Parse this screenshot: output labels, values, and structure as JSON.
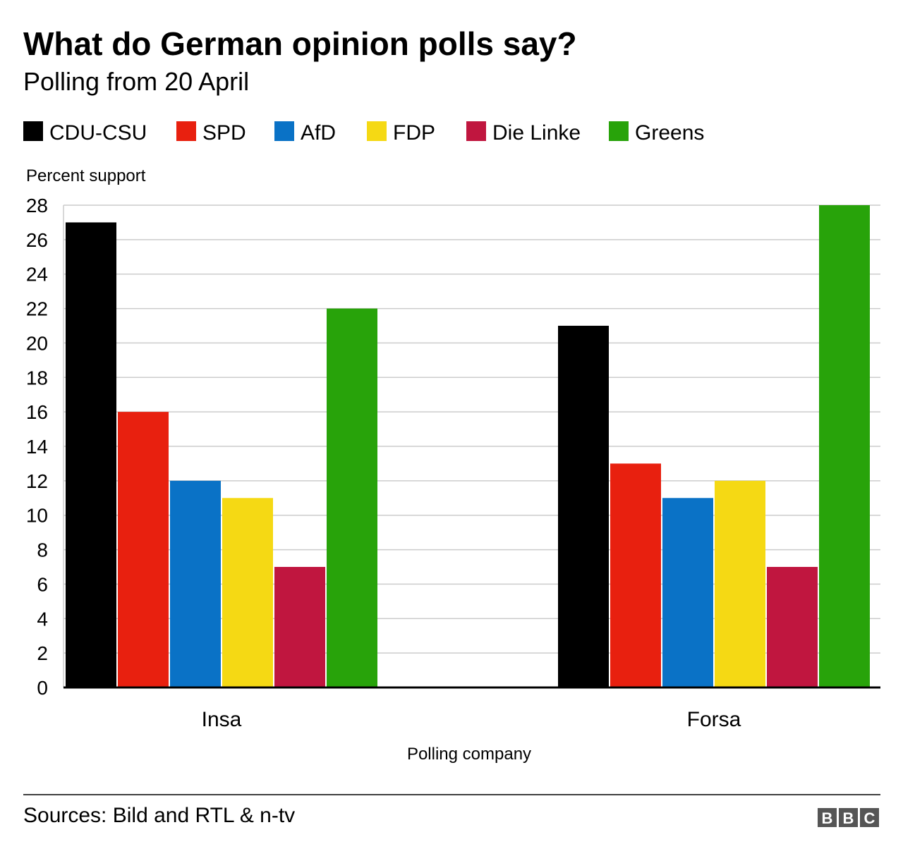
{
  "chart_data": {
    "type": "bar",
    "title": "What do German opinion polls say?",
    "subtitle": "Polling from 20 April",
    "ylabel": "Percent support",
    "xlabel": "Polling company",
    "ylim": [
      0,
      28
    ],
    "yticks": [
      0,
      2,
      4,
      6,
      8,
      10,
      12,
      14,
      16,
      18,
      20,
      22,
      24,
      26,
      28
    ],
    "grid": true,
    "legend_placement": "top",
    "categories": [
      "Insa",
      "Forsa"
    ],
    "series": [
      {
        "name": "CDU-CSU",
        "color": "#000000",
        "values": [
          27,
          21
        ]
      },
      {
        "name": "SPD",
        "color": "#e8200f",
        "values": [
          16,
          13
        ]
      },
      {
        "name": "AfD",
        "color": "#0a72c6",
        "values": [
          12,
          11
        ]
      },
      {
        "name": "FDP",
        "color": "#f5d914",
        "values": [
          11,
          12
        ]
      },
      {
        "name": "Die Linke",
        "color": "#c0163f",
        "values": [
          7,
          7
        ]
      },
      {
        "name": "Greens",
        "color": "#28a30a",
        "values": [
          22,
          28
        ]
      }
    ]
  },
  "footer": {
    "source": "Sources: Bild and RTL & n-tv",
    "logo": "BBC"
  }
}
